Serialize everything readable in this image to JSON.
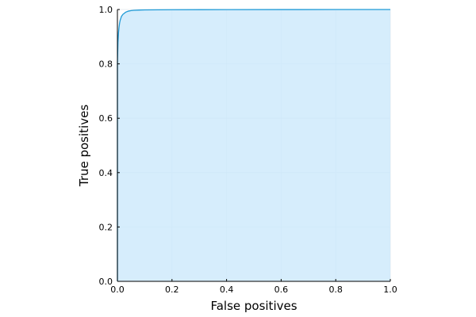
{
  "chart_data": {
    "type": "area",
    "xlabel": "False positives",
    "ylabel": "True positives",
    "xlim": [
      0.0,
      1.0
    ],
    "ylim": [
      0.0,
      1.0
    ],
    "x_ticks": [
      "0.0",
      "0.2",
      "0.4",
      "0.6",
      "0.8",
      "1.0"
    ],
    "y_ticks": [
      "0.0",
      "0.2",
      "0.4",
      "0.6",
      "0.8",
      "1.0"
    ],
    "grid": true,
    "legend": "none",
    "series": [
      {
        "x": [
          0.0,
          0.0,
          0.002,
          0.004,
          0.006,
          0.008,
          0.01,
          0.015,
          0.02,
          0.03,
          0.04,
          0.05,
          0.06,
          0.08,
          0.1,
          0.15,
          0.2,
          0.4,
          0.6,
          0.8,
          1.0
        ],
        "y": [
          0.0,
          0.8,
          0.88,
          0.915,
          0.935,
          0.95,
          0.96,
          0.975,
          0.982,
          0.99,
          0.994,
          0.996,
          0.997,
          0.998,
          0.9985,
          0.999,
          0.9993,
          0.9996,
          0.9998,
          0.9999,
          1.0
        ]
      }
    ],
    "colors": {
      "line": "#1f9ad6",
      "fill": "#cce9fb",
      "grid": "#e1e8ed",
      "axis": "#000000"
    }
  }
}
